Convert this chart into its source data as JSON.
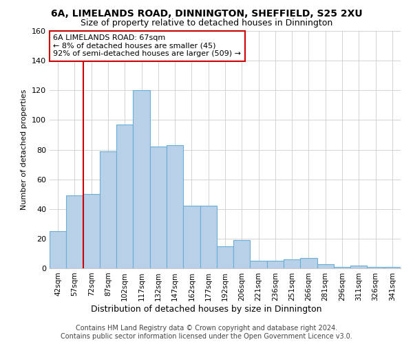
{
  "title": "6A, LIMELANDS ROAD, DINNINGTON, SHEFFIELD, S25 2XU",
  "subtitle": "Size of property relative to detached houses in Dinnington",
  "xlabel": "Distribution of detached houses by size in Dinnington",
  "ylabel": "Number of detached properties",
  "bar_values": [
    25,
    49,
    50,
    79,
    97,
    120,
    82,
    83,
    42,
    42,
    15,
    19,
    5,
    5,
    6,
    7,
    3,
    1,
    2,
    1,
    1
  ],
  "bar_labels": [
    "42sqm",
    "57sqm",
    "72sqm",
    "87sqm",
    "102sqm",
    "117sqm",
    "132sqm",
    "147sqm",
    "162sqm",
    "177sqm",
    "192sqm",
    "206sqm",
    "221sqm",
    "236sqm",
    "251sqm",
    "266sqm",
    "281sqm",
    "296sqm",
    "311sqm",
    "326sqm",
    "341sqm"
  ],
  "bar_color": "#b8d0e8",
  "bar_edge_color": "#6aaed6",
  "vline_color": "#cc0000",
  "annotation_title": "6A LIMELANDS ROAD: 67sqm",
  "annotation_line1": "← 8% of detached houses are smaller (45)",
  "annotation_line2": "92% of semi-detached houses are larger (509) →",
  "annotation_box_color": "#ffffff",
  "annotation_box_edge": "#cc0000",
  "ylim": [
    0,
    160
  ],
  "yticks": [
    0,
    20,
    40,
    60,
    80,
    100,
    120,
    140,
    160
  ],
  "footer1": "Contains HM Land Registry data © Crown copyright and database right 2024.",
  "footer2": "Contains public sector information licensed under the Open Government Licence v3.0.",
  "background_color": "#ffffff",
  "grid_color": "#cccccc"
}
